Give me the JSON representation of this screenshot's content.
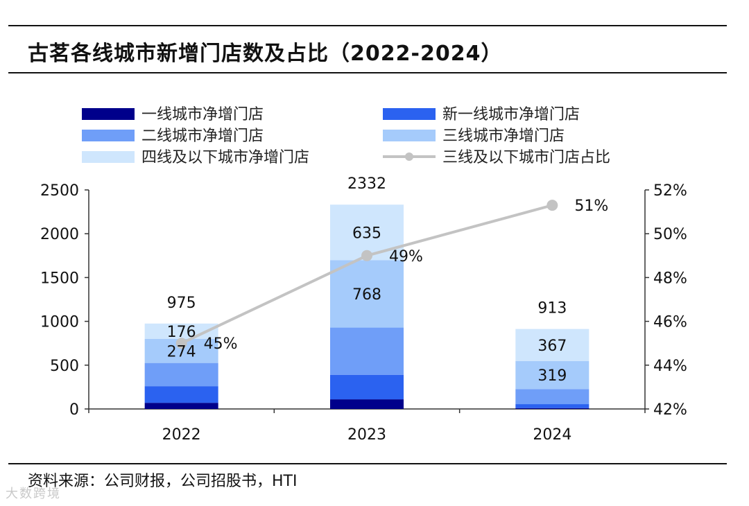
{
  "title": "古茗各线城市新增门店数及占比（2022-2024）",
  "source": "资料来源：公司财报，公司招股书，HTI",
  "watermark": "大数跨境",
  "colors": {
    "tier1": "#00008b",
    "new_tier1": "#2b62f0",
    "tier2": "#6f9ef8",
    "tier3": "#a5cbfb",
    "tier4": "#cfe6fd",
    "share_line": "#c3c3c3",
    "axis": "#333333"
  },
  "chart_data": {
    "type": "bar",
    "stacked": true,
    "categories": [
      "2022",
      "2023",
      "2024"
    ],
    "series": [
      {
        "key": "tier1",
        "name": "一线城市净增门店",
        "values": [
          70,
          110,
          10
        ]
      },
      {
        "key": "new_tier1",
        "name": "新一线城市净增门店",
        "values": [
          190,
          280,
          45
        ]
      },
      {
        "key": "tier2",
        "name": "二线城市净增门店",
        "values": [
          265,
          539,
          172
        ]
      },
      {
        "key": "tier3",
        "name": "三线城市净增门店",
        "values": [
          274,
          768,
          319
        ],
        "labels": [
          "274",
          "768",
          "319"
        ]
      },
      {
        "key": "tier4",
        "name": "四线及以下城市净增门店",
        "values": [
          176,
          635,
          367
        ],
        "labels": [
          "176",
          "635",
          "367"
        ]
      }
    ],
    "totals": [
      975,
      2332,
      913
    ],
    "total_labels": [
      "975",
      "2332",
      "913"
    ],
    "line": {
      "key": "share_line",
      "name": "三线及以下城市门店占比",
      "axis": "right",
      "values": [
        45,
        49,
        51.3
      ],
      "labels": [
        "45%",
        "49%",
        "51%"
      ]
    },
    "y_left": {
      "min": 0,
      "max": 2500,
      "ticks": [
        "0",
        "500",
        "1000",
        "1500",
        "2000",
        "2500"
      ]
    },
    "y_right": {
      "min": 42,
      "max": 52,
      "ticks": [
        "42%",
        "44%",
        "46%",
        "48%",
        "50%",
        "52%"
      ]
    },
    "legend": [
      {
        "key": "tier1",
        "label": "一线城市净增门店",
        "kind": "bar"
      },
      {
        "key": "new_tier1",
        "label": "新一线城市净增门店",
        "kind": "bar"
      },
      {
        "key": "tier2",
        "label": "二线城市净增门店",
        "kind": "bar"
      },
      {
        "key": "tier3",
        "label": "三线城市净增门店",
        "kind": "bar"
      },
      {
        "key": "tier4",
        "label": "四线及以下城市净增门店",
        "kind": "bar"
      },
      {
        "key": "share_line",
        "label": "三线及以下城市门店占比",
        "kind": "line"
      }
    ]
  }
}
